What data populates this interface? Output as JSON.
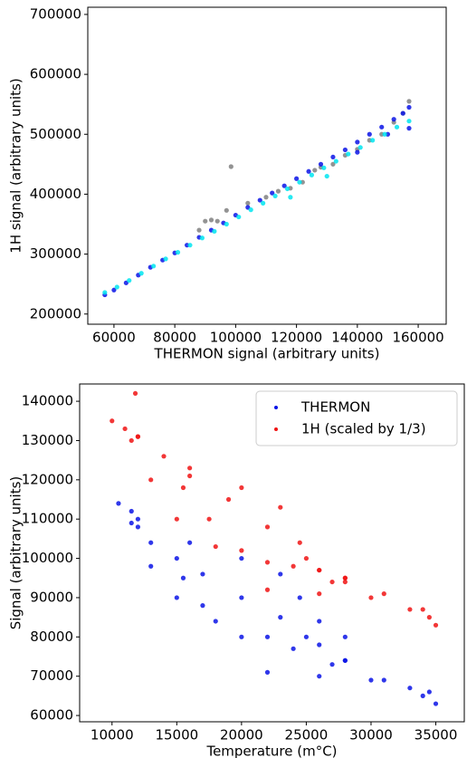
{
  "chart_data": [
    {
      "type": "scatter",
      "xlabel": "THERMON signal (arbitrary units)",
      "ylabel": "1H signal (arbitrary units)",
      "xlim": [
        51400,
        169200
      ],
      "ylim": [
        183000,
        712000
      ],
      "xticks": [
        60000,
        80000,
        100000,
        120000,
        140000,
        160000
      ],
      "yticks": [
        200000,
        300000,
        400000,
        500000,
        600000,
        700000
      ],
      "series": [
        {
          "color": "#808080",
          "x": [
            88000,
            90000,
            92000,
            94000,
            97000,
            98500,
            104000,
            110000,
            114000,
            118000,
            122000,
            126000,
            128000,
            132000,
            136000,
            140000,
            144000,
            148000,
            152000,
            155000,
            157000
          ],
          "values": [
            340000,
            355000,
            357000,
            355000,
            373000,
            446000,
            385000,
            395000,
            405000,
            410000,
            420000,
            440000,
            445000,
            450000,
            465000,
            475000,
            490000,
            500000,
            520000,
            535000,
            555000
          ]
        },
        {
          "color": "#0a14e6",
          "x": [
            57000,
            60000,
            64000,
            68000,
            72000,
            76000,
            80000,
            84000,
            88000,
            92000,
            96000,
            100000,
            104000,
            108000,
            112000,
            116000,
            120000,
            124000,
            128000,
            132000,
            136000,
            140000,
            144000,
            148000,
            152000,
            155000,
            157000,
            157000,
            150000,
            140000
          ],
          "values": [
            232000,
            240000,
            252000,
            265000,
            278000,
            290000,
            302000,
            315000,
            328000,
            340000,
            352000,
            365000,
            378000,
            390000,
            402000,
            414000,
            426000,
            438000,
            450000,
            462000,
            474000,
            487000,
            500000,
            512000,
            525000,
            535000,
            545000,
            510000,
            500000,
            470000
          ]
        },
        {
          "color": "#00e5f0",
          "x": [
            57000,
            61000,
            65000,
            69000,
            73000,
            77000,
            81000,
            85000,
            89000,
            93000,
            97000,
            101000,
            105000,
            109000,
            113000,
            117000,
            121000,
            125000,
            129000,
            133000,
            137000,
            141000,
            145000,
            149000,
            153000,
            157000,
            130000,
            118000
          ],
          "values": [
            236000,
            245000,
            256000,
            268000,
            280000,
            292000,
            303000,
            315000,
            327000,
            338000,
            350000,
            362000,
            374000,
            385000,
            397000,
            409000,
            420000,
            432000,
            444000,
            455000,
            467000,
            478000,
            490000,
            500000,
            512000,
            522000,
            430000,
            395000
          ]
        }
      ]
    },
    {
      "type": "scatter",
      "xlabel": "Temperature (m°C)",
      "ylabel": "Signal (arbitrary units)",
      "xlim": [
        7500,
        37200
      ],
      "ylim": [
        58400,
        144400
      ],
      "xticks": [
        10000,
        15000,
        20000,
        25000,
        30000,
        35000
      ],
      "yticks": [
        60000,
        70000,
        80000,
        90000,
        100000,
        110000,
        120000,
        130000,
        140000
      ],
      "legend": "upper right",
      "series": [
        {
          "name": "THERMON",
          "color": "#0a14e6",
          "x": [
            10500,
            11500,
            12000,
            13000,
            15000,
            17000,
            20000,
            23000,
            25000,
            28000,
            31000,
            34000,
            35000,
            11500,
            13000,
            15000,
            18000,
            22000,
            26000,
            28000,
            15500,
            17000,
            20000,
            24000,
            27000,
            22000,
            26000,
            30000,
            12000,
            16000,
            20000,
            23000,
            24500,
            26000,
            28000,
            33000,
            34500
          ],
          "values": [
            114000,
            112000,
            108000,
            104000,
            100000,
            96000,
            90000,
            85000,
            80000,
            74000,
            69000,
            65000,
            63000,
            109000,
            98000,
            90000,
            84000,
            80000,
            78000,
            74000,
            95000,
            88000,
            80000,
            77000,
            73000,
            71000,
            70000,
            69000,
            110000,
            104000,
            100000,
            96000,
            90000,
            84000,
            80000,
            67000,
            66000
          ]
        },
        {
          "name": "1H (scaled by 1/3)",
          "color": "#f01414",
          "x": [
            10000,
            11000,
            11800,
            12000,
            14000,
            16000,
            19000,
            22000,
            25000,
            28000,
            31000,
            34000,
            35000,
            11500,
            13000,
            15000,
            18000,
            22000,
            26000,
            28000,
            15500,
            17500,
            20000,
            24000,
            27000,
            22000,
            26000,
            30000,
            12000,
            16000,
            20000,
            23000,
            24500,
            26000,
            28000,
            33000,
            34500
          ],
          "values": [
            135000,
            133000,
            142000,
            131000,
            126000,
            121000,
            115000,
            108000,
            100000,
            95000,
            91000,
            87000,
            83000,
            130000,
            120000,
            110000,
            103000,
            99000,
            97000,
            94000,
            118000,
            110000,
            102000,
            98000,
            94000,
            92000,
            91000,
            90000,
            131000,
            123000,
            118000,
            113000,
            104000,
            97000,
            95000,
            87000,
            85000
          ]
        }
      ]
    }
  ]
}
